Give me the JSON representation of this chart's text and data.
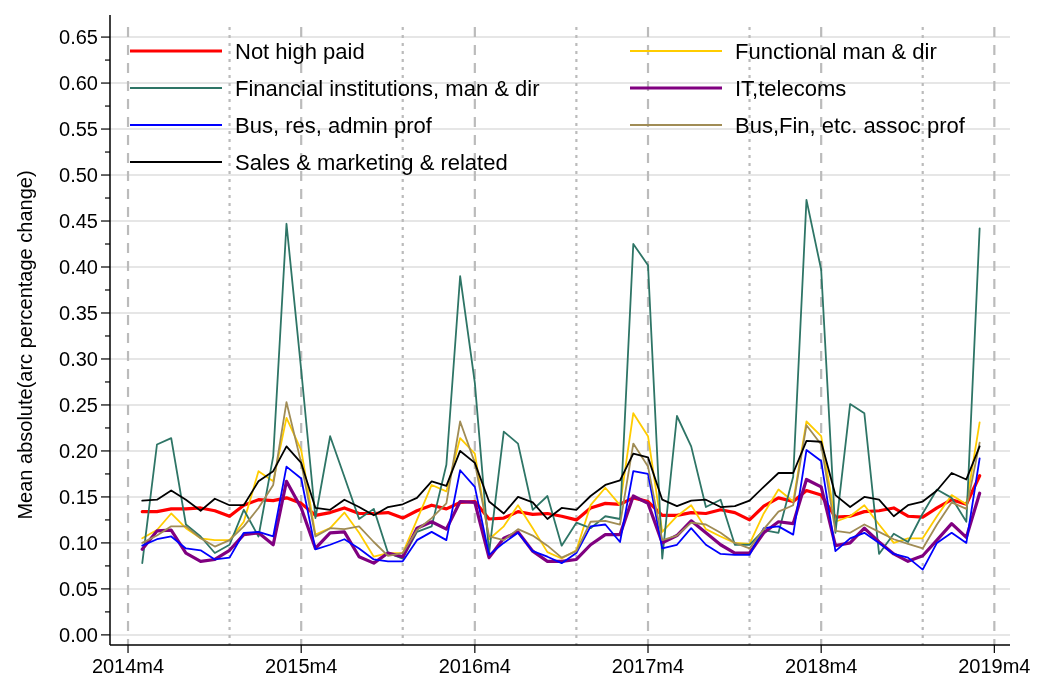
{
  "chart_data": {
    "type": "line",
    "ylabel": "Mean absolute(arc percentage change)",
    "x": [
      "2014-05",
      "2014-06",
      "2014-07",
      "2014-08",
      "2014-09",
      "2014-10",
      "2014-11",
      "2014-12",
      "2015-01",
      "2015-02",
      "2015-03",
      "2015-04",
      "2015-05",
      "2015-06",
      "2015-07",
      "2015-08",
      "2015-09",
      "2015-10",
      "2015-11",
      "2015-12",
      "2016-01",
      "2016-02",
      "2016-03",
      "2016-04",
      "2016-05",
      "2016-06",
      "2016-07",
      "2016-08",
      "2016-09",
      "2016-10",
      "2016-11",
      "2016-12",
      "2017-01",
      "2017-02",
      "2017-03",
      "2017-04",
      "2017-05",
      "2017-06",
      "2017-07",
      "2017-08",
      "2017-09",
      "2017-10",
      "2017-11",
      "2017-12",
      "2018-01",
      "2018-02",
      "2018-03",
      "2018-04",
      "2018-05",
      "2018-06",
      "2018-07",
      "2018-08",
      "2018-09",
      "2018-10",
      "2018-11",
      "2018-12",
      "2019-01",
      "2019-02",
      "2019-03"
    ],
    "xlim": [
      "2014-02-22",
      "2019-05-04"
    ],
    "xticks": [
      {
        "value": "2014-04",
        "label": "2014m4"
      },
      {
        "value": "2015-04",
        "label": "2015m4"
      },
      {
        "value": "2016-04",
        "label": "2016m4"
      },
      {
        "value": "2017-04",
        "label": "2017m4"
      },
      {
        "value": "2018-04",
        "label": "2018m4"
      },
      {
        "value": "2019-04",
        "label": "2019m4"
      }
    ],
    "ylim": [
      -0.011,
      0.674
    ],
    "yticks": [
      {
        "value": 0,
        "label": "0.00"
      },
      {
        "value": 0.025,
        "label": null
      },
      {
        "value": 0.05,
        "label": "0.05"
      },
      {
        "value": 0.075,
        "label": null
      },
      {
        "value": 0.1,
        "label": "0.10"
      },
      {
        "value": 0.125,
        "label": null
      },
      {
        "value": 0.15,
        "label": "0.15"
      },
      {
        "value": 0.175,
        "label": null
      },
      {
        "value": 0.2,
        "label": "0.20"
      },
      {
        "value": 0.225,
        "label": null
      },
      {
        "value": 0.25,
        "label": "0.25"
      },
      {
        "value": 0.275,
        "label": null
      },
      {
        "value": 0.3,
        "label": "0.30"
      },
      {
        "value": 0.325,
        "label": null
      },
      {
        "value": 0.35,
        "label": "0.35"
      },
      {
        "value": 0.375,
        "label": null
      },
      {
        "value": 0.4,
        "label": "0.40"
      },
      {
        "value": 0.425,
        "label": null
      },
      {
        "value": 0.45,
        "label": "0.45"
      },
      {
        "value": 0.475,
        "label": null
      },
      {
        "value": 0.5,
        "label": "0.50"
      },
      {
        "value": 0.525,
        "label": null
      },
      {
        "value": 0.55,
        "label": "0.55"
      },
      {
        "value": 0.575,
        "label": null
      },
      {
        "value": 0.6,
        "label": "0.60"
      },
      {
        "value": 0.625,
        "label": null
      },
      {
        "value": 0.65,
        "label": "0.65"
      }
    ],
    "grid": "y",
    "legend": "top left",
    "series": [
      {
        "name": "Not high paid",
        "color": "#ff0000",
        "values": [
          0.134,
          0.134,
          0.137,
          0.137,
          0.138,
          0.135,
          0.129,
          0.141,
          0.147,
          0.146,
          0.149,
          0.143,
          0.13,
          0.133,
          0.138,
          0.132,
          0.132,
          0.133,
          0.127,
          0.135,
          0.141,
          0.137,
          0.144,
          0.145,
          0.126,
          0.127,
          0.134,
          0.131,
          0.132,
          0.129,
          0.125,
          0.138,
          0.143,
          0.142,
          0.149,
          0.145,
          0.13,
          0.13,
          0.133,
          0.132,
          0.136,
          0.133,
          0.125,
          0.14,
          0.149,
          0.145,
          0.157,
          0.152,
          0.128,
          0.129,
          0.134,
          0.135,
          0.138,
          0.129,
          0.128,
          0.138,
          0.147,
          0.142,
          0.173
        ]
      },
      {
        "name": "Functional man & dir",
        "color": "#ffcc00",
        "values": [
          0.105,
          0.114,
          0.132,
          0.116,
          0.105,
          0.103,
          0.103,
          0.123,
          0.178,
          0.167,
          0.236,
          0.201,
          0.109,
          0.116,
          0.133,
          0.111,
          0.085,
          0.089,
          0.089,
          0.125,
          0.163,
          0.156,
          0.214,
          0.197,
          0.104,
          0.118,
          0.141,
          0.116,
          0.09,
          0.083,
          0.092,
          0.141,
          0.16,
          0.141,
          0.241,
          0.216,
          0.112,
          0.129,
          0.141,
          0.115,
          0.107,
          0.1,
          0.099,
          0.132,
          0.158,
          0.145,
          0.232,
          0.216,
          0.123,
          0.129,
          0.141,
          0.12,
          0.1,
          0.105,
          0.105,
          0.129,
          0.152,
          0.142,
          0.231
        ]
      },
      {
        "name": "Financial institutions, man & dir",
        "color": "#2e7566",
        "values": [
          0.078,
          0.207,
          0.214,
          0.12,
          0.107,
          0.089,
          0.098,
          0.136,
          0.107,
          0.194,
          0.447,
          0.288,
          0.127,
          0.216,
          0.172,
          0.126,
          0.137,
          0.089,
          0.083,
          0.112,
          0.118,
          0.185,
          0.39,
          0.274,
          0.089,
          0.221,
          0.208,
          0.136,
          0.151,
          0.097,
          0.122,
          0.116,
          0.129,
          0.126,
          0.425,
          0.402,
          0.083,
          0.238,
          0.205,
          0.139,
          0.147,
          0.098,
          0.098,
          0.114,
          0.111,
          0.172,
          0.473,
          0.397,
          0.111,
          0.251,
          0.241,
          0.088,
          0.11,
          0.101,
          0.132,
          0.158,
          0.149,
          0.123,
          0.442
        ]
      },
      {
        "name": "IT,telecoms",
        "color": "#800080",
        "values": [
          0.093,
          0.113,
          0.114,
          0.089,
          0.08,
          0.082,
          0.092,
          0.109,
          0.111,
          0.098,
          0.167,
          0.138,
          0.094,
          0.111,
          0.112,
          0.085,
          0.078,
          0.089,
          0.085,
          0.116,
          0.123,
          0.115,
          0.145,
          0.144,
          0.084,
          0.105,
          0.112,
          0.091,
          0.08,
          0.08,
          0.082,
          0.098,
          0.109,
          0.109,
          0.151,
          0.143,
          0.1,
          0.108,
          0.124,
          0.111,
          0.098,
          0.089,
          0.089,
          0.111,
          0.123,
          0.121,
          0.169,
          0.161,
          0.097,
          0.1,
          0.116,
          0.101,
          0.088,
          0.08,
          0.086,
          0.103,
          0.121,
          0.106,
          0.154
        ]
      },
      {
        "name": "Bus, res, admin prof",
        "color": "#0000ff",
        "values": [
          0.097,
          0.104,
          0.107,
          0.094,
          0.092,
          0.082,
          0.084,
          0.111,
          0.112,
          0.107,
          0.183,
          0.17,
          0.093,
          0.098,
          0.104,
          0.094,
          0.082,
          0.08,
          0.08,
          0.103,
          0.112,
          0.103,
          0.179,
          0.161,
          0.087,
          0.1,
          0.111,
          0.091,
          0.085,
          0.078,
          0.089,
          0.118,
          0.12,
          0.101,
          0.178,
          0.175,
          0.094,
          0.098,
          0.116,
          0.098,
          0.088,
          0.087,
          0.087,
          0.116,
          0.118,
          0.109,
          0.201,
          0.189,
          0.091,
          0.105,
          0.111,
          0.1,
          0.088,
          0.084,
          0.071,
          0.1,
          0.111,
          0.1,
          0.192
        ]
      },
      {
        "name": "Bus,Fin, etc. assoc prof",
        "color": "#a08c55",
        "values": [
          0.1,
          0.108,
          0.118,
          0.118,
          0.105,
          0.096,
          0.103,
          0.118,
          0.138,
          0.163,
          0.253,
          0.187,
          0.107,
          0.116,
          0.115,
          0.118,
          0.101,
          0.086,
          0.089,
          0.114,
          0.127,
          0.143,
          0.232,
          0.187,
          0.107,
          0.103,
          0.115,
          0.108,
          0.097,
          0.084,
          0.091,
          0.123,
          0.124,
          0.12,
          0.208,
          0.183,
          0.103,
          0.108,
          0.122,
          0.12,
          0.111,
          0.1,
          0.094,
          0.115,
          0.134,
          0.141,
          0.228,
          0.207,
          0.113,
          0.111,
          0.12,
          0.112,
          0.104,
          0.099,
          0.094,
          0.12,
          0.144,
          0.137,
          0.209
        ]
      },
      {
        "name": "Sales & marketing & related",
        "color": "#000000",
        "values": [
          0.146,
          0.147,
          0.157,
          0.147,
          0.135,
          0.148,
          0.141,
          0.141,
          0.167,
          0.178,
          0.205,
          0.187,
          0.138,
          0.136,
          0.147,
          0.139,
          0.13,
          0.139,
          0.142,
          0.149,
          0.167,
          0.162,
          0.2,
          0.187,
          0.145,
          0.132,
          0.15,
          0.144,
          0.126,
          0.138,
          0.136,
          0.151,
          0.163,
          0.168,
          0.197,
          0.193,
          0.147,
          0.14,
          0.146,
          0.147,
          0.139,
          0.14,
          0.146,
          0.161,
          0.176,
          0.176,
          0.211,
          0.21,
          0.152,
          0.139,
          0.15,
          0.147,
          0.129,
          0.141,
          0.145,
          0.157,
          0.176,
          0.169,
          0.205
        ]
      }
    ],
    "ref_lines": [
      {
        "axis": "x",
        "value": "2014-04",
        "line_style": "dashed",
        "color": "#bbbbbb"
      },
      {
        "axis": "x",
        "value": "2014-11",
        "line_style": "dotted",
        "color": "#bbbbbb"
      },
      {
        "axis": "x",
        "value": "2015-04",
        "line_style": "dashed",
        "color": "#bbbbbb"
      },
      {
        "axis": "x",
        "value": "2015-11",
        "line_style": "dotted",
        "color": "#bbbbbb"
      },
      {
        "axis": "x",
        "value": "2016-04",
        "line_style": "dashed",
        "color": "#bbbbbb"
      },
      {
        "axis": "x",
        "value": "2016-11",
        "line_style": "dotted",
        "color": "#bbbbbb"
      },
      {
        "axis": "x",
        "value": "2017-04",
        "line_style": "dashed",
        "color": "#bbbbbb"
      },
      {
        "axis": "x",
        "value": "2017-11",
        "line_style": "dotted",
        "color": "#bbbbbb"
      },
      {
        "axis": "x",
        "value": "2018-04",
        "line_style": "dashed",
        "color": "#bbbbbb"
      },
      {
        "axis": "x",
        "value": "2018-11",
        "line_style": "dotted",
        "color": "#bbbbbb"
      },
      {
        "axis": "x",
        "value": "2019-04",
        "line_style": "dashed",
        "color": "#bbbbbb"
      }
    ]
  }
}
